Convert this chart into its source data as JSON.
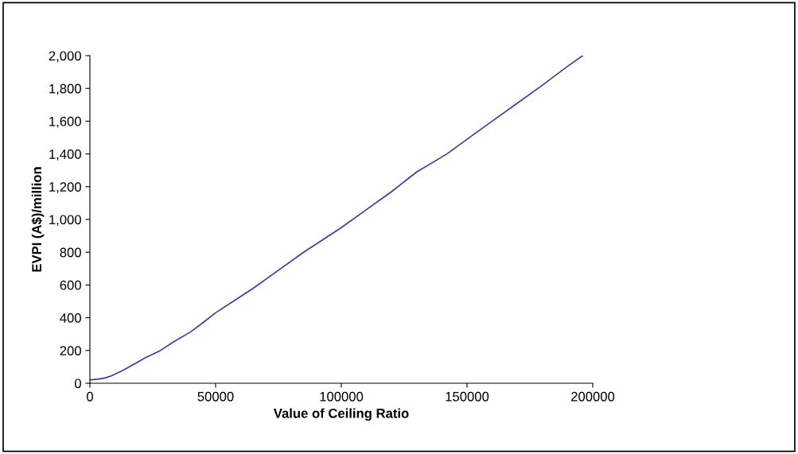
{
  "chart_data": {
    "type": "line",
    "xlabel": "Value of Ceiling Ratio",
    "ylabel": "EVPI (A$)/million",
    "x": [
      0,
      3200,
      6000,
      8500,
      12700,
      18000,
      22000,
      27500,
      33000,
      40200,
      45000,
      50000,
      57000,
      65000,
      75000,
      85000,
      100000,
      110000,
      120000,
      130000,
      142000,
      150000,
      160000,
      170000,
      180000,
      190000,
      196000
    ],
    "series": [
      {
        "color": "#3c3c9c",
        "values": [
          20,
          25,
          32,
          45,
          75,
          120,
          155,
          195,
          250,
          315,
          370,
          430,
          500,
          580,
          690,
          800,
          950,
          1060,
          1170,
          1290,
          1400,
          1490,
          1600,
          1710,
          1820,
          1935,
          2000
        ]
      }
    ],
    "xlim": [
      0,
      200000
    ],
    "xticks": [
      0,
      50000,
      100000,
      150000,
      200000
    ],
    "ylim": [
      0,
      2000
    ],
    "yticks": [
      {
        "value": 0,
        "label": "0"
      },
      {
        "value": 200,
        "label": "200"
      },
      {
        "value": 400,
        "label": "400"
      },
      {
        "value": 600,
        "label": "600"
      },
      {
        "value": 800,
        "label": "800"
      },
      {
        "value": 1000,
        "label": "1,000"
      },
      {
        "value": 1200,
        "label": "1,200"
      },
      {
        "value": 1400,
        "label": "1,400"
      },
      {
        "value": 1600,
        "label": "1,600"
      },
      {
        "value": 1800,
        "label": "1,800"
      },
      {
        "value": 2000,
        "label": "2,000"
      }
    ],
    "grid": false,
    "legend": false
  }
}
